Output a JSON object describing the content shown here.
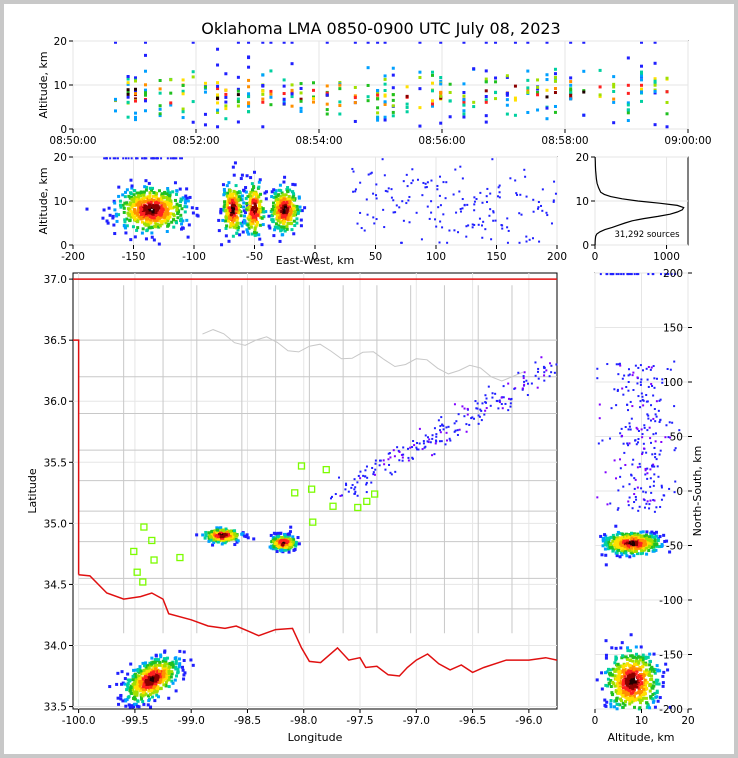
{
  "title": "Oklahoma LMA 0850-0900 UTC July 08, 2023",
  "colors": {
    "boundary": "#e01010",
    "counties": "#c8c8c8",
    "stations": "#7cfc00",
    "density": [
      "#2020ff",
      "#00a0ff",
      "#00d0a0",
      "#20c020",
      "#a0e000",
      "#ffe000",
      "#ff9000",
      "#ff2020",
      "#8b0000",
      "#200000"
    ]
  },
  "chart_data": [
    {
      "type": "scatter",
      "name": "time-altitude",
      "xlabel": "",
      "ylabel": "Altitude, km",
      "x_ticks": [
        "08:50:00",
        "08:52:00",
        "08:54:00",
        "08:56:00",
        "08:58:00",
        "09:00:00"
      ],
      "y_ticks": [
        0,
        10,
        20
      ],
      "xlim": [
        "08:50:00",
        "09:00:00"
      ],
      "ylim": [
        0,
        20
      ]
    },
    {
      "type": "scatter",
      "name": "east-west-altitude",
      "xlabel": "East-West, km",
      "ylabel": "Altitude, km",
      "x_ticks": [
        -200,
        -150,
        -100,
        -50,
        0,
        50,
        100,
        150,
        200
      ],
      "y_ticks": [
        0,
        10,
        20
      ],
      "xlim": [
        -200,
        200
      ],
      "ylim": [
        0,
        20
      ],
      "clusters": [
        {
          "x": -135,
          "alt": 8,
          "sx": 14,
          "sa": 2.5,
          "n": 520
        },
        {
          "x": -68,
          "alt": 8,
          "sx": 4,
          "sa": 3,
          "n": 220
        },
        {
          "x": -50,
          "alt": 8,
          "sx": 4,
          "sa": 3,
          "n": 160
        },
        {
          "x": -25,
          "alt": 8,
          "sx": 6,
          "sa": 2.5,
          "n": 260
        }
      ]
    },
    {
      "type": "line",
      "name": "altitude-histogram",
      "x_ticks": [
        0,
        1000
      ],
      "y_ticks": [
        0,
        10,
        20
      ],
      "xlim": [
        0,
        1300
      ],
      "ylim": [
        0,
        20
      ],
      "annotation": "31,292 sources",
      "profile": [
        [
          0,
          1
        ],
        [
          0.5,
          2
        ],
        [
          1,
          3
        ],
        [
          1.5,
          5
        ],
        [
          2,
          10
        ],
        [
          2.5,
          25
        ],
        [
          3,
          70
        ],
        [
          3.5,
          140
        ],
        [
          4,
          240
        ],
        [
          4.5,
          330
        ],
        [
          5,
          420
        ],
        [
          5.5,
          520
        ],
        [
          6,
          680
        ],
        [
          6.5,
          880
        ],
        [
          7,
          1050
        ],
        [
          7.5,
          1150
        ],
        [
          8,
          1220
        ],
        [
          8.5,
          1240
        ],
        [
          9,
          1150
        ],
        [
          9.5,
          900
        ],
        [
          10,
          600
        ],
        [
          10.5,
          380
        ],
        [
          11,
          220
        ],
        [
          11.5,
          130
        ],
        [
          12,
          80
        ],
        [
          13,
          50
        ],
        [
          14,
          30
        ],
        [
          15,
          20
        ],
        [
          16,
          14
        ],
        [
          17,
          9
        ],
        [
          18,
          6
        ],
        [
          19,
          4
        ],
        [
          20,
          2
        ]
      ]
    },
    {
      "type": "scatter",
      "name": "plan-view",
      "xlabel": "Longitude",
      "ylabel": "Latitude",
      "x_ticks": [
        -100.0,
        -99.5,
        -99.0,
        -98.5,
        -98.0,
        -97.5,
        -97.0,
        -96.5,
        -96.0
      ],
      "y_ticks": [
        33.5,
        34.0,
        34.5,
        35.0,
        35.5,
        36.0,
        36.5,
        37.0
      ],
      "xlim": [
        -100.05,
        -95.75
      ],
      "ylim": [
        33.48,
        37.05
      ],
      "stations": [
        {
          "lon": -99.42,
          "lat": 34.97
        },
        {
          "lon": -99.51,
          "lat": 34.77
        },
        {
          "lon": -99.35,
          "lat": 34.86
        },
        {
          "lon": -99.33,
          "lat": 34.7
        },
        {
          "lon": -99.48,
          "lat": 34.6
        },
        {
          "lon": -99.43,
          "lat": 34.52
        },
        {
          "lon": -99.1,
          "lat": 34.72
        },
        {
          "lon": -98.02,
          "lat": 35.47
        },
        {
          "lon": -98.08,
          "lat": 35.25
        },
        {
          "lon": -97.93,
          "lat": 35.28
        },
        {
          "lon": -97.8,
          "lat": 35.44
        },
        {
          "lon": -97.74,
          "lat": 35.14
        },
        {
          "lon": -97.92,
          "lat": 35.01
        },
        {
          "lon": -97.52,
          "lat": 35.13
        },
        {
          "lon": -97.44,
          "lat": 35.18
        },
        {
          "lon": -97.37,
          "lat": 35.24
        }
      ],
      "clusters": [
        {
          "lon": -99.35,
          "lat": 33.72,
          "slon": 0.1,
          "slat": 0.09,
          "n": 520
        },
        {
          "lon": -98.72,
          "lat": 34.9,
          "slon": 0.08,
          "slat": 0.03,
          "n": 230
        },
        {
          "lon": -98.18,
          "lat": 34.84,
          "slon": 0.06,
          "slat": 0.03,
          "n": 260
        }
      ]
    },
    {
      "type": "scatter",
      "name": "altitude-north-south",
      "xlabel": "Altitude, km",
      "ylabel": "North-South, km",
      "x_ticks": [
        0,
        10,
        20
      ],
      "y_ticks": [
        -200,
        -150,
        -100,
        -50,
        0,
        50,
        100,
        150,
        200
      ],
      "xlim": [
        0,
        20
      ],
      "ylim": [
        -200,
        200
      ],
      "clusters": [
        {
          "alt": 8,
          "y": -48,
          "sa": 3,
          "sy": 5,
          "n": 480
        },
        {
          "alt": 8,
          "y": -175,
          "sa": 2.8,
          "sy": 14,
          "n": 520
        }
      ]
    }
  ]
}
